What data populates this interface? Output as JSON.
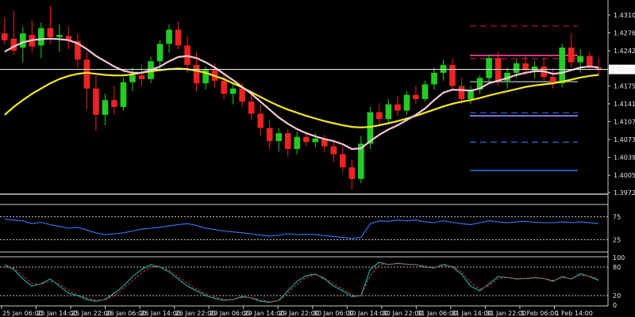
{
  "chart_data": [
    {
      "type": "candlestick",
      "panel": "price",
      "ylim": [
        1.3972,
        1.4331
      ],
      "y_ticks": [
        "1.43100",
        "1.42760",
        "1.42420",
        "1.42064",
        "1.41750",
        "1.41410",
        "1.41070",
        "1.40730",
        "1.40390",
        "1.40050",
        "1.39720"
      ],
      "current_price_label": "1.42064",
      "current_price": 1.42064,
      "grid": false,
      "colors": {
        "up": "#22cc22",
        "down": "#ee2222",
        "ma_fast": "#f6c6d6",
        "ma_slow": "#f2e827",
        "price_line": "#ffffff"
      },
      "candles": [
        {
          "o": 1.4275,
          "h": 1.4305,
          "l": 1.4254,
          "c": 1.4262
        },
        {
          "o": 1.4265,
          "h": 1.4318,
          "l": 1.4235,
          "c": 1.4242
        },
        {
          "o": 1.4248,
          "h": 1.4288,
          "l": 1.422,
          "c": 1.4275
        },
        {
          "o": 1.4272,
          "h": 1.43,
          "l": 1.4238,
          "c": 1.425
        },
        {
          "o": 1.4252,
          "h": 1.4295,
          "l": 1.4228,
          "c": 1.4285
        },
        {
          "o": 1.4285,
          "h": 1.4328,
          "l": 1.4255,
          "c": 1.4268
        },
        {
          "o": 1.4268,
          "h": 1.4292,
          "l": 1.424,
          "c": 1.4272
        },
        {
          "o": 1.427,
          "h": 1.4288,
          "l": 1.4245,
          "c": 1.4262
        },
        {
          "o": 1.426,
          "h": 1.4275,
          "l": 1.421,
          "c": 1.4225
        },
        {
          "o": 1.4225,
          "h": 1.424,
          "l": 1.413,
          "c": 1.417
        },
        {
          "o": 1.417,
          "h": 1.4195,
          "l": 1.409,
          "c": 1.412
        },
        {
          "o": 1.412,
          "h": 1.416,
          "l": 1.41,
          "c": 1.4148
        },
        {
          "o": 1.4148,
          "h": 1.4175,
          "l": 1.412,
          "c": 1.4135
        },
        {
          "o": 1.4135,
          "h": 1.419,
          "l": 1.4128,
          "c": 1.4182
        },
        {
          "o": 1.4182,
          "h": 1.421,
          "l": 1.4165,
          "c": 1.4195
        },
        {
          "o": 1.4195,
          "h": 1.4215,
          "l": 1.4175,
          "c": 1.4188
        },
        {
          "o": 1.4188,
          "h": 1.423,
          "l": 1.418,
          "c": 1.4222
        },
        {
          "o": 1.4222,
          "h": 1.4262,
          "l": 1.4205,
          "c": 1.4255
        },
        {
          "o": 1.4255,
          "h": 1.4292,
          "l": 1.4238,
          "c": 1.4282
        },
        {
          "o": 1.4282,
          "h": 1.4298,
          "l": 1.4245,
          "c": 1.4252
        },
        {
          "o": 1.4252,
          "h": 1.427,
          "l": 1.42,
          "c": 1.4215
        },
        {
          "o": 1.4215,
          "h": 1.424,
          "l": 1.4165,
          "c": 1.418
        },
        {
          "o": 1.418,
          "h": 1.4212,
          "l": 1.4168,
          "c": 1.4205
        },
        {
          "o": 1.4205,
          "h": 1.4218,
          "l": 1.4172,
          "c": 1.4185
        },
        {
          "o": 1.4185,
          "h": 1.42,
          "l": 1.415,
          "c": 1.416
        },
        {
          "o": 1.416,
          "h": 1.4178,
          "l": 1.414,
          "c": 1.417
        },
        {
          "o": 1.417,
          "h": 1.4182,
          "l": 1.4135,
          "c": 1.4145
        },
        {
          "o": 1.4145,
          "h": 1.416,
          "l": 1.411,
          "c": 1.4122
        },
        {
          "o": 1.4122,
          "h": 1.414,
          "l": 1.408,
          "c": 1.4095
        },
        {
          "o": 1.4095,
          "h": 1.411,
          "l": 1.4055,
          "c": 1.407
        },
        {
          "o": 1.407,
          "h": 1.4095,
          "l": 1.405,
          "c": 1.4085
        },
        {
          "o": 1.4085,
          "h": 1.4092,
          "l": 1.404,
          "c": 1.4055
        },
        {
          "o": 1.4055,
          "h": 1.4088,
          "l": 1.4045,
          "c": 1.4078
        },
        {
          "o": 1.4078,
          "h": 1.4085,
          "l": 1.406,
          "c": 1.4068
        },
        {
          "o": 1.4068,
          "h": 1.4085,
          "l": 1.4058,
          "c": 1.4075
        },
        {
          "o": 1.4075,
          "h": 1.4082,
          "l": 1.405,
          "c": 1.406
        },
        {
          "o": 1.406,
          "h": 1.4072,
          "l": 1.403,
          "c": 1.4045
        },
        {
          "o": 1.4045,
          "h": 1.406,
          "l": 1.401,
          "c": 1.402
        },
        {
          "o": 1.402,
          "h": 1.4035,
          "l": 1.3978,
          "c": 1.3998
        },
        {
          "o": 1.3998,
          "h": 1.408,
          "l": 1.399,
          "c": 1.4065
        },
        {
          "o": 1.4065,
          "h": 1.4135,
          "l": 1.4055,
          "c": 1.4125
        },
        {
          "o": 1.4125,
          "h": 1.4142,
          "l": 1.41,
          "c": 1.4112
        },
        {
          "o": 1.4112,
          "h": 1.415,
          "l": 1.4105,
          "c": 1.414
        },
        {
          "o": 1.414,
          "h": 1.4155,
          "l": 1.4118,
          "c": 1.4128
        },
        {
          "o": 1.4128,
          "h": 1.4165,
          "l": 1.412,
          "c": 1.4158
        },
        {
          "o": 1.4158,
          "h": 1.4175,
          "l": 1.414,
          "c": 1.415
        },
        {
          "o": 1.415,
          "h": 1.4185,
          "l": 1.4145,
          "c": 1.4178
        },
        {
          "o": 1.4178,
          "h": 1.421,
          "l": 1.4168,
          "c": 1.42
        },
        {
          "o": 1.42,
          "h": 1.4225,
          "l": 1.4185,
          "c": 1.4215
        },
        {
          "o": 1.4215,
          "h": 1.4228,
          "l": 1.4165,
          "c": 1.4175
        },
        {
          "o": 1.4175,
          "h": 1.419,
          "l": 1.414,
          "c": 1.415
        },
        {
          "o": 1.415,
          "h": 1.4175,
          "l": 1.414,
          "c": 1.4168
        },
        {
          "o": 1.4168,
          "h": 1.4195,
          "l": 1.416,
          "c": 1.419
        },
        {
          "o": 1.419,
          "h": 1.4235,
          "l": 1.4182,
          "c": 1.4228
        },
        {
          "o": 1.4228,
          "h": 1.424,
          "l": 1.4175,
          "c": 1.4185
        },
        {
          "o": 1.4185,
          "h": 1.421,
          "l": 1.417,
          "c": 1.42
        },
        {
          "o": 1.42,
          "h": 1.4225,
          "l": 1.419,
          "c": 1.4218
        },
        {
          "o": 1.4218,
          "h": 1.4232,
          "l": 1.4195,
          "c": 1.4205
        },
        {
          "o": 1.4205,
          "h": 1.4222,
          "l": 1.419,
          "c": 1.4212
        },
        {
          "o": 1.4212,
          "h": 1.4228,
          "l": 1.4185,
          "c": 1.4192
        },
        {
          "o": 1.4192,
          "h": 1.4208,
          "l": 1.417,
          "c": 1.418
        },
        {
          "o": 1.418,
          "h": 1.4255,
          "l": 1.4172,
          "c": 1.4248
        },
        {
          "o": 1.4248,
          "h": 1.4275,
          "l": 1.421,
          "c": 1.422
        },
        {
          "o": 1.422,
          "h": 1.4245,
          "l": 1.42,
          "c": 1.4232
        },
        {
          "o": 1.4232,
          "h": 1.424,
          "l": 1.4205,
          "c": 1.421
        },
        {
          "o": 1.421,
          "h": 1.4228,
          "l": 1.4195,
          "c": 1.4206
        }
      ],
      "ma_fast": [
        1.424,
        1.425,
        1.4258,
        1.4262,
        1.4264,
        1.4265,
        1.4264,
        1.4262,
        1.4256,
        1.4245,
        1.4232,
        1.4222,
        1.4212,
        1.4204,
        1.42,
        1.42,
        1.4205,
        1.4212,
        1.4222,
        1.423,
        1.4232,
        1.4228,
        1.422,
        1.421,
        1.4198,
        1.4186,
        1.4173,
        1.416,
        1.4145,
        1.413,
        1.4115,
        1.4103,
        1.4093,
        1.4085,
        1.4079,
        1.4074,
        1.407,
        1.4064,
        1.4055,
        1.4056,
        1.407,
        1.4082,
        1.4092,
        1.41,
        1.411,
        1.412,
        1.4132,
        1.4148,
        1.4162,
        1.4168,
        1.4167,
        1.4166,
        1.417,
        1.418,
        1.4185,
        1.419,
        1.4196,
        1.42,
        1.4203,
        1.4203,
        1.4198,
        1.42,
        1.4205,
        1.421,
        1.4212,
        1.421
      ],
      "ma_slow": [
        1.412,
        1.4135,
        1.4148,
        1.416,
        1.417,
        1.418,
        1.4188,
        1.4194,
        1.4198,
        1.42,
        1.4198,
        1.4196,
        1.4195,
        1.4195,
        1.4197,
        1.42,
        1.4203,
        1.4205,
        1.4207,
        1.4208,
        1.4207,
        1.4204,
        1.42,
        1.4194,
        1.4188,
        1.418,
        1.4172,
        1.4163,
        1.4154,
        1.4145,
        1.4137,
        1.413,
        1.4124,
        1.4118,
        1.4113,
        1.4108,
        1.4104,
        1.41,
        1.4097,
        1.4096,
        1.4097,
        1.41,
        1.4104,
        1.4108,
        1.4113,
        1.4118,
        1.4124,
        1.413,
        1.4136,
        1.4141,
        1.4145,
        1.4148,
        1.4152,
        1.4157,
        1.4161,
        1.4165,
        1.4169,
        1.4173,
        1.4176,
        1.4178,
        1.418,
        1.4183,
        1.4187,
        1.4191,
        1.4194,
        1.4196
      ],
      "levels": [
        {
          "price": 1.4289,
          "color": "#b01030",
          "style": "dashed"
        },
        {
          "price": 1.4233,
          "color": "#ff44aa",
          "style": "solid"
        },
        {
          "price": 1.4227,
          "color": "#d02040",
          "style": "dashed"
        },
        {
          "price": 1.4183,
          "color": "#9aa0a8",
          "style": "solid"
        },
        {
          "price": 1.4124,
          "color": "#2060d0",
          "style": "dashed"
        },
        {
          "price": 1.4118,
          "color": "#9a8cff",
          "style": "solid"
        },
        {
          "price": 1.4068,
          "color": "#2a68d8",
          "style": "dashed"
        },
        {
          "price": 1.4014,
          "color": "#2a68d8",
          "style": "solid"
        }
      ]
    },
    {
      "type": "line",
      "panel": "indicator_1",
      "ylim": [
        0,
        100
      ],
      "y_ticks": [
        "75",
        "25"
      ],
      "levels": [
        75,
        25
      ],
      "series": [
        {
          "color": "#3a78ff",
          "values": [
            70,
            68,
            66,
            60,
            63,
            58,
            54,
            50,
            52,
            46,
            40,
            36,
            38,
            40,
            44,
            48,
            50,
            52,
            55,
            58,
            60,
            56,
            50,
            47,
            44,
            42,
            40,
            38,
            35,
            33,
            35,
            38,
            36,
            37,
            36,
            34,
            32,
            30,
            28,
            30,
            60,
            66,
            65,
            68,
            66,
            68,
            64,
            62,
            66,
            63,
            60,
            58,
            62,
            66,
            64,
            62,
            64,
            65,
            63,
            62,
            62,
            64,
            62,
            64,
            62,
            60
          ]
        }
      ]
    },
    {
      "type": "line",
      "panel": "indicator_2",
      "ylim": [
        0,
        100
      ],
      "y_ticks": [
        "100",
        "80",
        "20",
        "0"
      ],
      "levels": [
        80,
        20
      ],
      "series": [
        {
          "color": "#19b8b8",
          "values": [
            85,
            75,
            55,
            40,
            45,
            55,
            40,
            25,
            20,
            12,
            8,
            12,
            25,
            40,
            60,
            75,
            85,
            80,
            70,
            55,
            40,
            30,
            20,
            14,
            10,
            12,
            18,
            15,
            8,
            6,
            10,
            30,
            50,
            62,
            65,
            55,
            40,
            30,
            18,
            20,
            75,
            90,
            85,
            88,
            86,
            85,
            80,
            78,
            86,
            80,
            65,
            40,
            30,
            45,
            60,
            58,
            55,
            56,
            58,
            56,
            50,
            60,
            55,
            66,
            60,
            52
          ]
        },
        {
          "color": "#d03030",
          "values": [
            80,
            78,
            62,
            46,
            44,
            50,
            45,
            30,
            22,
            15,
            10,
            11,
            20,
            35,
            52,
            68,
            80,
            82,
            74,
            60,
            46,
            34,
            24,
            17,
            12,
            12,
            16,
            16,
            11,
            7,
            9,
            24,
            44,
            58,
            64,
            58,
            45,
            34,
            22,
            19,
            62,
            85,
            86,
            87,
            86,
            85,
            82,
            79,
            83,
            82,
            70,
            48,
            34,
            41,
            56,
            58,
            56,
            56,
            57,
            56,
            52,
            58,
            56,
            63,
            61,
            55
          ]
        }
      ]
    }
  ],
  "x_axis": {
    "labels": [
      "25 Jan 06:00",
      "25 Jan 14:00",
      "25 Jan 22:00",
      "26 Jan 06:00",
      "26 Jan 14:00",
      "26 Jan 22:00",
      "29 Jan 06:00",
      "29 Jan 14:00",
      "29 Jan 22:00",
      "30 Jan 06:00",
      "30 Jan 14:00",
      "30 Jan 22:00",
      "31 Jan 06:00",
      "31 Jan 14:00",
      "31 Jan 22:00",
      "1 Feb 06:00",
      "1 Feb 14:00"
    ]
  }
}
